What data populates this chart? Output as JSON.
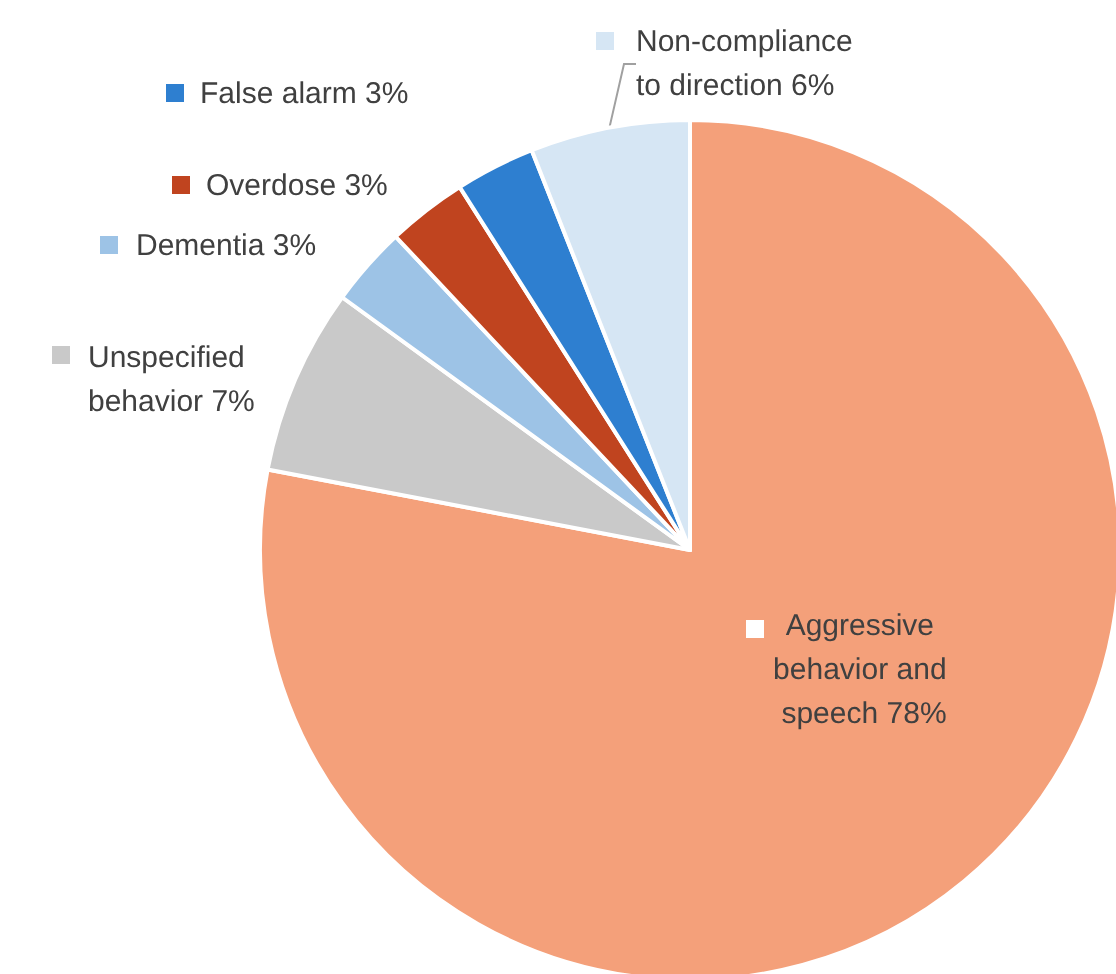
{
  "chart_data": {
    "type": "pie",
    "categories": [
      "Aggressive behavior and speech",
      "Unspecified behavior",
      "Dementia",
      "Overdose",
      "False alarm",
      "Non-compliance to direction"
    ],
    "values": [
      78,
      7,
      3,
      3,
      3,
      6
    ],
    "value_labels": [
      "78%",
      "7%",
      "3%",
      "3%",
      "3%",
      "6%"
    ],
    "colors": [
      "#f4a07a",
      "#c9c9c9",
      "#9dc3e6",
      "#c0441f",
      "#2e7fd0",
      "#d6e6f4"
    ],
    "legend": "left"
  }
}
